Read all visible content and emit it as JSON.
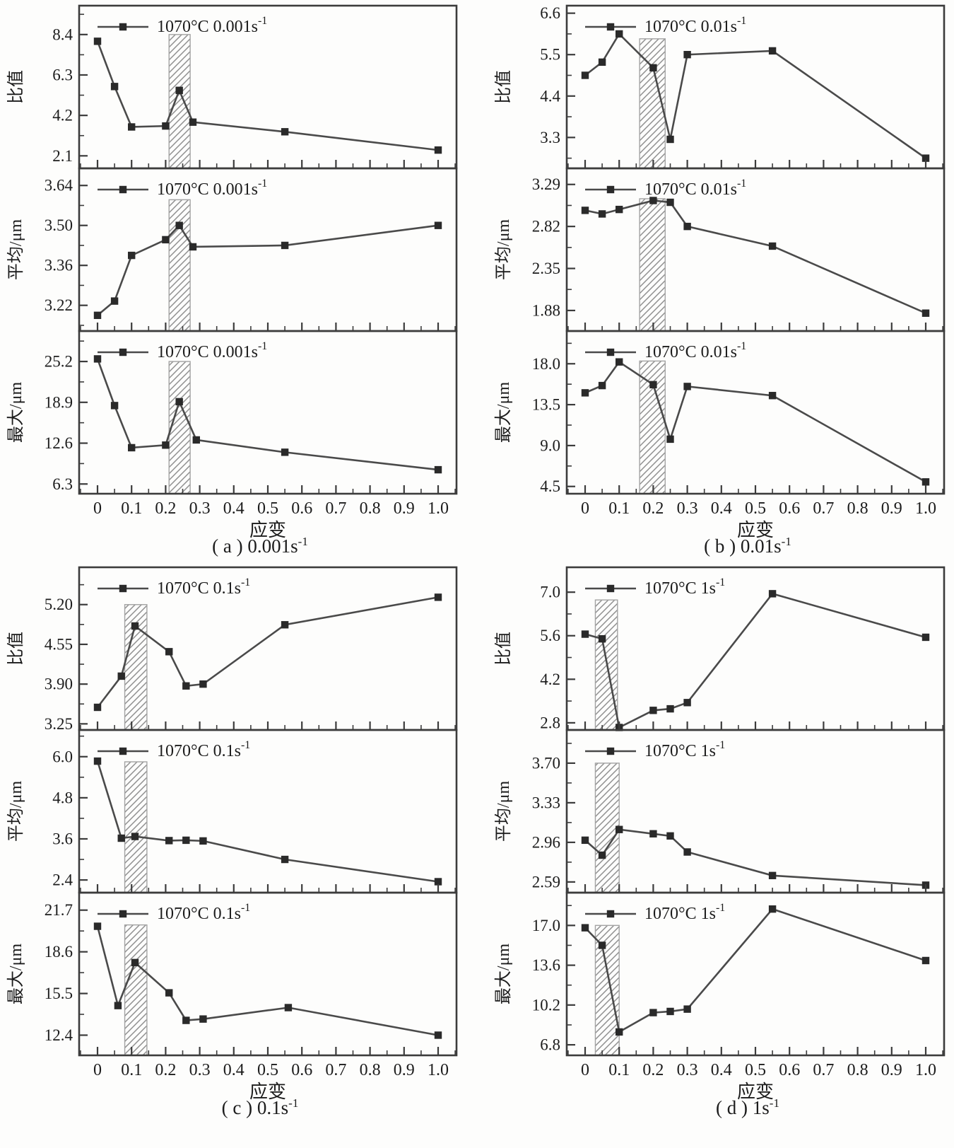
{
  "figure": {
    "xlabel": "应变",
    "xticks": [
      "0",
      "0.1",
      "0.2",
      "0.3",
      "0.4",
      "0.5",
      "0.6",
      "0.7",
      "0.8",
      "0.9",
      "1.0"
    ],
    "xlim": [
      -0.054,
      1.054
    ],
    "colors": {
      "axis": "#3c3c3c",
      "line": "#4a4a4a",
      "marker": "#2a2a2a",
      "band": "#a3a3a3",
      "hatch": "#8f8f8f",
      "text": "#1c1c1c",
      "background": "#fdfdfc"
    }
  },
  "chart_data": [
    {
      "panel": "a",
      "type": "line",
      "caption": {
        "text": "( a ) 0.001s",
        "sup": "-1"
      },
      "legend": {
        "text": "1070°C  0.001s",
        "sup": "-1"
      },
      "xlabel": "应变",
      "subplots": [
        {
          "ylabel": "比值",
          "yticks": [
            "2.1",
            "4.2",
            "6.3",
            "8.4"
          ],
          "ylim": [
            1.45,
            9.9
          ],
          "band": {
            "x0": 0.21,
            "x1": 0.272,
            "ytop": 8.4
          },
          "points": [
            [
              0,
              8.05
            ],
            [
              0.05,
              5.7
            ],
            [
              0.1,
              3.6
            ],
            [
              0.2,
              3.65
            ],
            [
              0.24,
              5.5
            ],
            [
              0.28,
              3.85
            ],
            [
              0.55,
              3.35
            ],
            [
              1,
              2.4
            ]
          ]
        },
        {
          "ylabel": "平均/μm",
          "yticks": [
            "3.22",
            "3.36",
            "3.50",
            "3.64"
          ],
          "ylim": [
            3.13,
            3.7
          ],
          "band": {
            "x0": 0.21,
            "x1": 0.272,
            "ytop": 3.59
          },
          "points": [
            [
              0,
              3.185
            ],
            [
              0.05,
              3.235
            ],
            [
              0.1,
              3.395
            ],
            [
              0.2,
              3.45
            ],
            [
              0.24,
              3.5
            ],
            [
              0.28,
              3.425
            ],
            [
              0.55,
              3.43
            ],
            [
              1,
              3.5
            ]
          ]
        },
        {
          "ylabel": "最大/μm",
          "yticks": [
            "6.3",
            "12.6",
            "18.9",
            "25.2"
          ],
          "ylim": [
            4.8,
            29.9
          ],
          "band": {
            "x0": 0.21,
            "x1": 0.272,
            "ytop": 25.2
          },
          "points": [
            [
              0,
              25.6
            ],
            [
              0.05,
              18.4
            ],
            [
              0.1,
              11.9
            ],
            [
              0.2,
              12.3
            ],
            [
              0.24,
              19.0
            ],
            [
              0.29,
              13.1
            ],
            [
              0.55,
              11.2
            ],
            [
              1,
              8.5
            ]
          ]
        }
      ]
    },
    {
      "panel": "b",
      "type": "line",
      "caption": {
        "text": "( b ) 0.01s",
        "sup": "-1"
      },
      "legend": {
        "text": "1070°C  0.01s",
        "sup": "-1"
      },
      "xlabel": "应变",
      "subplots": [
        {
          "ylabel": "比值",
          "yticks": [
            "3.3",
            "4.4",
            "5.5",
            "6.6"
          ],
          "ylim": [
            2.48,
            6.8
          ],
          "band": {
            "x0": 0.16,
            "x1": 0.235,
            "ytop": 5.92
          },
          "points": [
            [
              0,
              4.95
            ],
            [
              0.05,
              5.3
            ],
            [
              0.1,
              6.05
            ],
            [
              0.2,
              5.15
            ],
            [
              0.25,
              3.25
            ],
            [
              0.3,
              5.5
            ],
            [
              0.55,
              5.6
            ],
            [
              1,
              2.75
            ]
          ]
        },
        {
          "ylabel": "平均/μm",
          "yticks": [
            "1.88",
            "2.35",
            "2.82",
            "3.29"
          ],
          "ylim": [
            1.65,
            3.47
          ],
          "band": {
            "x0": 0.16,
            "x1": 0.235,
            "ytop": 3.13
          },
          "points": [
            [
              0,
              3.0
            ],
            [
              0.05,
              2.96
            ],
            [
              0.1,
              3.01
            ],
            [
              0.2,
              3.11
            ],
            [
              0.25,
              3.09
            ],
            [
              0.3,
              2.82
            ],
            [
              0.55,
              2.6
            ],
            [
              1,
              1.85
            ]
          ]
        },
        {
          "ylabel": "最大/μm",
          "yticks": [
            "4.5",
            "9.0",
            "13.5",
            "18.0"
          ],
          "ylim": [
            3.7,
            21.6
          ],
          "band": {
            "x0": 0.16,
            "x1": 0.235,
            "ytop": 18.3
          },
          "points": [
            [
              0,
              14.8
            ],
            [
              0.05,
              15.6
            ],
            [
              0.1,
              18.2
            ],
            [
              0.2,
              15.7
            ],
            [
              0.25,
              9.7
            ],
            [
              0.3,
              15.5
            ],
            [
              0.55,
              14.5
            ],
            [
              1,
              5.0
            ]
          ]
        }
      ]
    },
    {
      "panel": "c",
      "type": "line",
      "caption": {
        "text": "( c ) 0.1s",
        "sup": "-1"
      },
      "legend": {
        "text": "1070°C  0.1s",
        "sup": "-1"
      },
      "xlabel": "应变",
      "subplots": [
        {
          "ylabel": "比值",
          "yticks": [
            "3.25",
            "3.90",
            "4.55",
            "5.20"
          ],
          "ylim": [
            3.15,
            5.81
          ],
          "band": {
            "x0": 0.08,
            "x1": 0.145,
            "ytop": 5.2
          },
          "points": [
            [
              0,
              3.52
            ],
            [
              0.07,
              4.03
            ],
            [
              0.11,
              4.85
            ],
            [
              0.21,
              4.43
            ],
            [
              0.26,
              3.87
            ],
            [
              0.31,
              3.9
            ],
            [
              0.55,
              4.87
            ],
            [
              1,
              5.32
            ]
          ]
        },
        {
          "ylabel": "平均/μm",
          "yticks": [
            "2.4",
            "3.6",
            "4.8",
            "6.0"
          ],
          "ylim": [
            2.03,
            6.78
          ],
          "band": {
            "x0": 0.08,
            "x1": 0.145,
            "ytop": 5.85
          },
          "points": [
            [
              0,
              5.87
            ],
            [
              0.07,
              3.62
            ],
            [
              0.11,
              3.67
            ],
            [
              0.21,
              3.55
            ],
            [
              0.26,
              3.56
            ],
            [
              0.31,
              3.54
            ],
            [
              0.55,
              3.0
            ],
            [
              1,
              2.35
            ]
          ]
        },
        {
          "ylabel": "最大/μm",
          "yticks": [
            "12.4",
            "15.5",
            "18.6",
            "21.7"
          ],
          "ylim": [
            10.9,
            23.0
          ],
          "band": {
            "x0": 0.08,
            "x1": 0.145,
            "ytop": 20.6
          },
          "points": [
            [
              0,
              20.5
            ],
            [
              0.06,
              14.6
            ],
            [
              0.11,
              17.8
            ],
            [
              0.21,
              15.55
            ],
            [
              0.26,
              13.5
            ],
            [
              0.31,
              13.6
            ],
            [
              0.56,
              14.45
            ],
            [
              1,
              12.4
            ]
          ]
        }
      ]
    },
    {
      "panel": "d",
      "type": "line",
      "caption": {
        "text": "( d ) 1s",
        "sup": "-1"
      },
      "legend": {
        "text": "1070°C  1s",
        "sup": "-1"
      },
      "xlabel": "应变",
      "subplots": [
        {
          "ylabel": "比值",
          "yticks": [
            "2.8",
            "4.2",
            "5.6",
            "7.0"
          ],
          "ylim": [
            2.57,
            7.8
          ],
          "band": {
            "x0": 0.03,
            "x1": 0.095,
            "ytop": 6.75
          },
          "points": [
            [
              0,
              5.65
            ],
            [
              0.05,
              5.5
            ],
            [
              0.1,
              2.65
            ],
            [
              0.2,
              3.2
            ],
            [
              0.25,
              3.25
            ],
            [
              0.3,
              3.45
            ],
            [
              0.55,
              6.95
            ],
            [
              1,
              5.55
            ]
          ]
        },
        {
          "ylabel": "平均/μm",
          "yticks": [
            "2.59",
            "2.96",
            "3.33",
            "3.70"
          ],
          "ylim": [
            2.49,
            4.01
          ],
          "band": {
            "x0": 0.03,
            "x1": 0.1,
            "ytop": 3.7
          },
          "points": [
            [
              0,
              2.98
            ],
            [
              0.05,
              2.84
            ],
            [
              0.1,
              3.08
            ],
            [
              0.2,
              3.04
            ],
            [
              0.25,
              3.02
            ],
            [
              0.3,
              2.87
            ],
            [
              0.55,
              2.65
            ],
            [
              1,
              2.56
            ]
          ]
        },
        {
          "ylabel": "最大/μm",
          "yticks": [
            "6.8",
            "10.2",
            "13.6",
            "17.0"
          ],
          "ylim": [
            5.9,
            19.8
          ],
          "band": {
            "x0": 0.03,
            "x1": 0.1,
            "ytop": 17.0
          },
          "points": [
            [
              0,
              16.8
            ],
            [
              0.05,
              15.3
            ],
            [
              0.1,
              7.9
            ],
            [
              0.2,
              9.55
            ],
            [
              0.25,
              9.65
            ],
            [
              0.3,
              9.85
            ],
            [
              0.55,
              18.4
            ],
            [
              1,
              14.0
            ]
          ]
        }
      ]
    }
  ]
}
